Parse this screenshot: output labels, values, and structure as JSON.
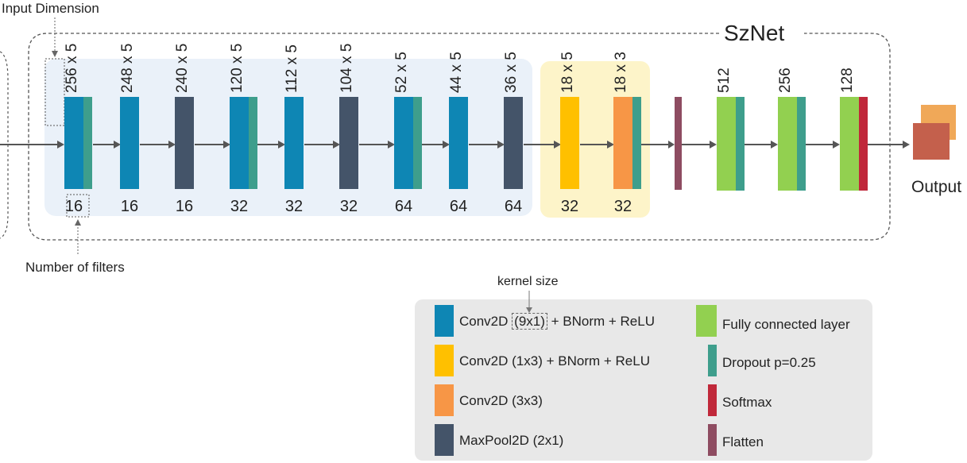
{
  "title": "SzNet",
  "annotations": {
    "input_dimension": "Input Dimension",
    "number_of_filters": "Number of filters",
    "kernel_size": "kernel size",
    "output": "Output"
  },
  "colors": {
    "conv_9x1": "#0E86B4",
    "conv_1x3": "#FFC000",
    "conv_3x3": "#F79646",
    "maxpool": "#445469",
    "fully_connected": "#92D050",
    "dropout": "#3E9E8C",
    "softmax": "#C0283A",
    "flatten": "#8E4C61",
    "blue_region": "#EAF1F9",
    "yellow_region": "#FDF4C9",
    "legend_bg": "#E8E8E8"
  },
  "layers": [
    {
      "dim": "256 x 5",
      "filters": "16",
      "type": "conv_9x1",
      "dropout": true
    },
    {
      "dim": "248 x 5",
      "filters": "16",
      "type": "conv_9x1",
      "dropout": false
    },
    {
      "dim": "240 x 5",
      "filters": "16",
      "type": "maxpool",
      "dropout": false
    },
    {
      "dim": "120 x 5",
      "filters": "32",
      "type": "conv_9x1",
      "dropout": true
    },
    {
      "dim": "112 x 5",
      "filters": "32",
      "type": "conv_9x1",
      "dropout": false
    },
    {
      "dim": "104 x 5",
      "filters": "32",
      "type": "maxpool",
      "dropout": false
    },
    {
      "dim": "52 x 5",
      "filters": "64",
      "type": "conv_9x1",
      "dropout": true
    },
    {
      "dim": "44 x 5",
      "filters": "64",
      "type": "conv_9x1",
      "dropout": false
    },
    {
      "dim": "36 x 5",
      "filters": "64",
      "type": "maxpool",
      "dropout": false
    },
    {
      "dim": "18 x 5",
      "filters": "32",
      "type": "conv_1x3",
      "dropout": false
    },
    {
      "dim": "18 x 3",
      "filters": "32",
      "type": "conv_3x3",
      "dropout": true
    }
  ],
  "fc_layers": [
    {
      "units": "512",
      "end": "dropout"
    },
    {
      "units": "256",
      "end": "dropout"
    },
    {
      "units": "128",
      "end": "softmax"
    }
  ],
  "legend": {
    "left": [
      {
        "label_before": "Conv2D",
        "label_kernel": "(9x1)",
        "label_after": " + BNorm + ReLU",
        "color_key": "conv_9x1"
      },
      {
        "label": "Conv2D (1x3) + BNorm + ReLU",
        "color_key": "conv_1x3"
      },
      {
        "label": "Conv2D (3x3)",
        "color_key": "conv_3x3"
      },
      {
        "label": "MaxPool2D (2x1)",
        "color_key": "maxpool"
      }
    ],
    "right": [
      {
        "label": "Fully connected layer",
        "color_key": "fully_connected"
      },
      {
        "label": "Dropout p=0.25",
        "color_key": "dropout"
      },
      {
        "label": "Softmax",
        "color_key": "softmax"
      },
      {
        "label": "Flatten",
        "color_key": "flatten"
      }
    ]
  }
}
